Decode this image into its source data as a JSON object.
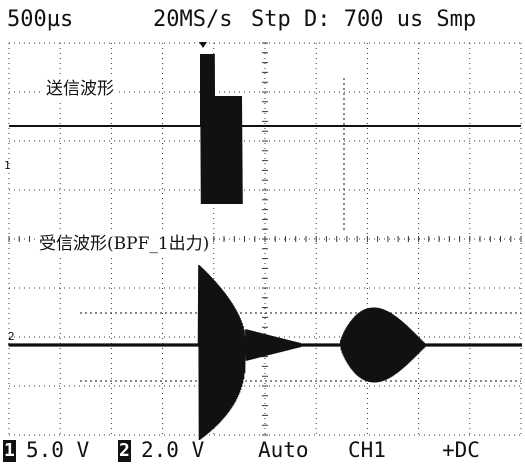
{
  "scope": {
    "top_bar": {
      "timebase": "500µs",
      "sample_rate": "20MS/s",
      "stop_delay": "Stp D: 700 us Smp"
    },
    "traces": [
      {
        "label": "送信波形",
        "marker": "1"
      },
      {
        "label": "受信波形(BPF_1出力)",
        "marker": "2"
      }
    ],
    "bottom_bar": {
      "ch1_badge": "1",
      "ch1_scale": "5.0 V",
      "ch2_badge": "2",
      "ch2_scale": "2.0 V",
      "trigger_mode": "Auto",
      "trigger_source": "CH1",
      "trigger_slope": "+DC"
    },
    "colors": {
      "background": "#ffffff",
      "trace": "#111111",
      "grid": "#333333"
    },
    "icons": [
      "trigger-position-icon"
    ]
  }
}
